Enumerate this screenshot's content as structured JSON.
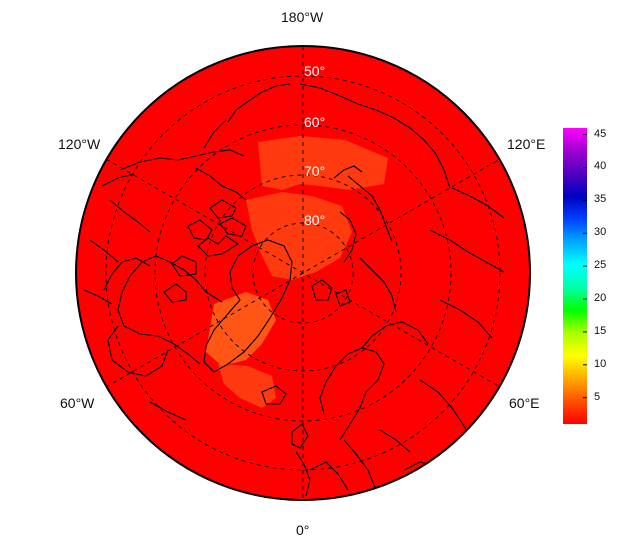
{
  "map": {
    "projection": "north-polar-stereographic",
    "outer_labels": {
      "top": "180°W",
      "bottom": "0°",
      "upper_left": "120°W",
      "upper_right": "120°E",
      "lower_left": "60°W",
      "lower_right": "60°E"
    },
    "latitude_labels": [
      "50°",
      "60°",
      "70°",
      "80°"
    ],
    "grid": true,
    "background_color": "#ff0000",
    "highlight_color": "#ff6a1a",
    "coastline_color": "#000000"
  },
  "colorbar": {
    "ticks": [
      "5",
      "10",
      "15",
      "20",
      "25",
      "30",
      "35",
      "40",
      "45"
    ],
    "range": [
      1,
      46
    ],
    "colors": [
      "#ff0000",
      "#ff5000",
      "#ffaa00",
      "#ffff00",
      "#aaff00",
      "#00ff00",
      "#00ffaa",
      "#00ffff",
      "#00aaff",
      "#0040ff",
      "#0000c0",
      "#5000c0",
      "#a000d0",
      "#ff00ff"
    ]
  }
}
